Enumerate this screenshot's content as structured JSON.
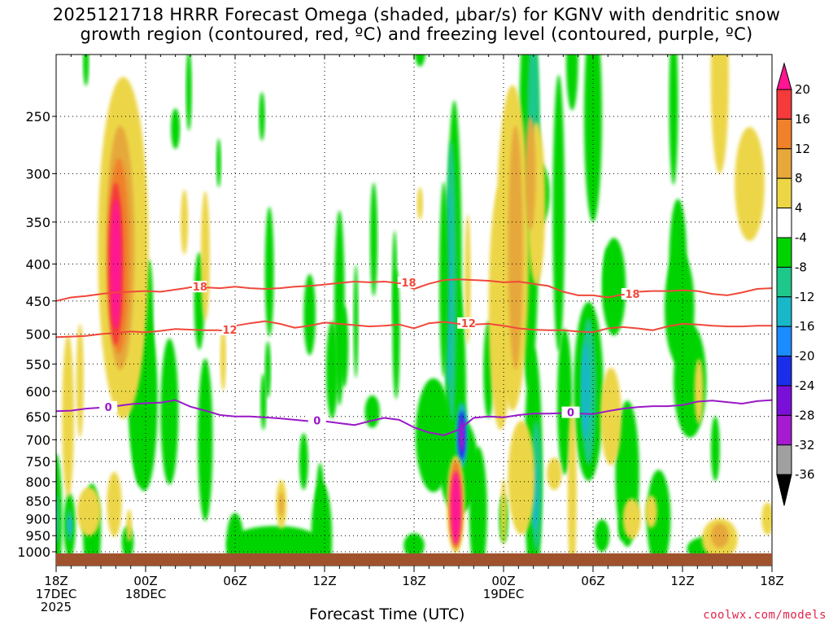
{
  "title": {
    "line1": "2025121718 HRRR Forecast Omega (shaded, μbar/s) for KGNV with dendritic snow",
    "line2": "growth region (contoured, red, ºC) and freezing level (contoured, purple, ºC)"
  },
  "x_axis_title": "Forecast Time (UTC)",
  "credit": "coolwx.com/models",
  "chart_data": {
    "type": "heatmap",
    "title": "2025121718 HRRR Forecast Omega (shaded, μbar/s) for KGNV with dendritic snow growth region (contoured, red, ºC) and freezing level (contoured, purple, ºC)",
    "xlabel": "Forecast Time (UTC)",
    "ylabel": "",
    "x_range_hours": [
      0,
      48
    ],
    "y_levels_hPa": [
      250,
      300,
      350,
      400,
      450,
      500,
      550,
      600,
      650,
      700,
      750,
      800,
      850,
      900,
      950,
      1000
    ],
    "y_range_hPa": [
      1000,
      200
    ],
    "y_scale": "log-pressure",
    "grid": true,
    "x_ticks": [
      {
        "hour": 0,
        "lines": [
          "18Z",
          "17DEC",
          "2025"
        ]
      },
      {
        "hour": 6,
        "lines": [
          "00Z",
          "18DEC"
        ]
      },
      {
        "hour": 12,
        "lines": [
          "06Z"
        ]
      },
      {
        "hour": 18,
        "lines": [
          "12Z"
        ]
      },
      {
        "hour": 24,
        "lines": [
          "18Z"
        ]
      },
      {
        "hour": 30,
        "lines": [
          "00Z",
          "19DEC"
        ]
      },
      {
        "hour": 36,
        "lines": [
          "06Z"
        ]
      },
      {
        "hour": 42,
        "lines": [
          "12Z"
        ]
      },
      {
        "hour": 48,
        "lines": [
          "18Z"
        ]
      }
    ],
    "colorbar": {
      "labels": [
        "20",
        "16",
        "12",
        "8",
        "4",
        "-4",
        "-8",
        "-12",
        "-16",
        "-20",
        "-24",
        "-28",
        "-32",
        "-36"
      ],
      "bins": [
        {
          "from": 20,
          "to": 24,
          "color": "#ff1493"
        },
        {
          "from": 16,
          "to": 20,
          "color": "#f43a3a"
        },
        {
          "from": 12,
          "to": 16,
          "color": "#f0812a"
        },
        {
          "from": 8,
          "to": 12,
          "color": "#e6a83a"
        },
        {
          "from": 4,
          "to": 8,
          "color": "#ecd646"
        },
        {
          "from": -4,
          "to": 4,
          "color": "#ffffff"
        },
        {
          "from": -8,
          "to": -4,
          "color": "#00d400"
        },
        {
          "from": -12,
          "to": -8,
          "color": "#1ec88a"
        },
        {
          "from": -16,
          "to": -12,
          "color": "#19b8c8"
        },
        {
          "from": -20,
          "to": -16,
          "color": "#1a8cff"
        },
        {
          "from": -24,
          "to": -20,
          "color": "#1a2eea"
        },
        {
          "from": -28,
          "to": -24,
          "color": "#7a10d8"
        },
        {
          "from": -32,
          "to": -28,
          "color": "#a61ad0"
        },
        {
          "from": -36,
          "to": -32,
          "color": "#a0a0a0"
        },
        {
          "from": -40,
          "to": -36,
          "color": "#000000"
        }
      ]
    },
    "contours": [
      {
        "name": "-18",
        "color": "#f0483a",
        "points": [
          [
            0,
            450
          ],
          [
            1,
            445
          ],
          [
            2,
            443
          ],
          [
            3,
            440
          ],
          [
            4,
            438
          ],
          [
            5,
            437
          ],
          [
            6,
            436
          ],
          [
            7,
            437
          ],
          [
            8,
            434
          ],
          [
            9,
            431
          ],
          [
            10,
            431
          ],
          [
            11,
            432
          ],
          [
            12,
            430
          ],
          [
            13,
            432
          ],
          [
            14,
            433
          ],
          [
            15,
            432
          ],
          [
            16,
            430
          ],
          [
            17,
            429
          ],
          [
            18,
            427
          ],
          [
            19,
            425
          ],
          [
            20,
            423
          ],
          [
            21,
            424
          ],
          [
            22,
            423
          ],
          [
            23,
            425
          ],
          [
            24,
            433
          ],
          [
            25,
            426
          ],
          [
            26,
            421
          ],
          [
            27,
            420
          ],
          [
            28,
            421
          ],
          [
            29,
            422
          ],
          [
            30,
            424
          ],
          [
            31,
            423
          ],
          [
            32,
            426
          ],
          [
            33,
            429
          ],
          [
            34,
            437
          ],
          [
            35,
            442
          ],
          [
            36,
            442
          ],
          [
            37,
            445
          ],
          [
            38,
            441
          ],
          [
            39,
            437
          ],
          [
            40,
            436
          ],
          [
            41,
            436
          ],
          [
            42,
            435
          ],
          [
            43,
            436
          ],
          [
            44,
            440
          ],
          [
            45,
            442
          ],
          [
            46,
            438
          ],
          [
            47,
            433
          ],
          [
            48,
            432
          ]
        ],
        "labels": [
          [
            9.5,
            "-18"
          ],
          [
            23.5,
            "-18"
          ],
          [
            38.5,
            "-18"
          ]
        ]
      },
      {
        "name": "-12",
        "color": "#f0483a",
        "points": [
          [
            0,
            505
          ],
          [
            1,
            504
          ],
          [
            2,
            503
          ],
          [
            3,
            500
          ],
          [
            4,
            498
          ],
          [
            5,
            496
          ],
          [
            6,
            497
          ],
          [
            7,
            495
          ],
          [
            8,
            492
          ],
          [
            9,
            493
          ],
          [
            10,
            494
          ],
          [
            11,
            494
          ],
          [
            12,
            487
          ],
          [
            13,
            483
          ],
          [
            14,
            480
          ],
          [
            15,
            484
          ],
          [
            16,
            490
          ],
          [
            17,
            487
          ],
          [
            18,
            482
          ],
          [
            19,
            484
          ],
          [
            20,
            486
          ],
          [
            21,
            488
          ],
          [
            22,
            487
          ],
          [
            23,
            485
          ],
          [
            24,
            491
          ],
          [
            25,
            483
          ],
          [
            26,
            481
          ],
          [
            27,
            484
          ],
          [
            28,
            485
          ],
          [
            29,
            484
          ],
          [
            30,
            487
          ],
          [
            31,
            491
          ],
          [
            32,
            493
          ],
          [
            33,
            494
          ],
          [
            34,
            494
          ],
          [
            35,
            496
          ],
          [
            36,
            497
          ],
          [
            37,
            491
          ],
          [
            38,
            489
          ],
          [
            39,
            491
          ],
          [
            40,
            494
          ],
          [
            41,
            488
          ],
          [
            42,
            484
          ],
          [
            43,
            485
          ],
          [
            44,
            487
          ],
          [
            45,
            488
          ],
          [
            46,
            488
          ],
          [
            47,
            487
          ],
          [
            48,
            487
          ]
        ],
        "labels": [
          [
            11.5,
            "-12"
          ],
          [
            27.5,
            "-12"
          ]
        ]
      },
      {
        "name": "0",
        "color": "#9a18c8",
        "points": [
          [
            0,
            639
          ],
          [
            1,
            638
          ],
          [
            2,
            634
          ],
          [
            3,
            632
          ],
          [
            4,
            629
          ],
          [
            5,
            625
          ],
          [
            6,
            623
          ],
          [
            7,
            622
          ],
          [
            8,
            617
          ],
          [
            9,
            630
          ],
          [
            10,
            638
          ],
          [
            11,
            647
          ],
          [
            12,
            650
          ],
          [
            13,
            650
          ],
          [
            14,
            652
          ],
          [
            15,
            654
          ],
          [
            16,
            657
          ],
          [
            17,
            660
          ],
          [
            18,
            660
          ],
          [
            19,
            664
          ],
          [
            20,
            668
          ],
          [
            21,
            660
          ],
          [
            22,
            653
          ],
          [
            23,
            657
          ],
          [
            24,
            673
          ],
          [
            25,
            684
          ],
          [
            26,
            690
          ],
          [
            27,
            678
          ],
          [
            28,
            653
          ],
          [
            29,
            650
          ],
          [
            30,
            652
          ],
          [
            31,
            647
          ],
          [
            32,
            644
          ],
          [
            33,
            644
          ],
          [
            34,
            643
          ],
          [
            35,
            644
          ],
          [
            36,
            645
          ],
          [
            37,
            639
          ],
          [
            38,
            634
          ],
          [
            39,
            631
          ],
          [
            40,
            629
          ],
          [
            41,
            629
          ],
          [
            42,
            627
          ],
          [
            43,
            620
          ],
          [
            44,
            618
          ],
          [
            45,
            621
          ],
          [
            46,
            624
          ],
          [
            47,
            619
          ],
          [
            48,
            617
          ]
        ],
        "labels": [
          [
            3.5,
            "0"
          ],
          [
            17.5,
            "0"
          ],
          [
            34.5,
            "0"
          ]
        ]
      }
    ],
    "omega_regions": [
      {
        "label": "upward motion 4-8",
        "center_hour": 4.5,
        "center_hPa": 370,
        "value": 6
      },
      {
        "label": "upward motion max (>20)",
        "center_hour": 4,
        "center_hPa": 390,
        "value": 22
      },
      {
        "label": "upward motion 8-12",
        "center_hour": 31,
        "center_hPa": 410,
        "value": 9
      },
      {
        "label": "upward motion 4-8",
        "center_hour": 46,
        "center_hPa": 290,
        "value": 6
      },
      {
        "label": "upward motion max (>20) low-level",
        "center_hour": 27,
        "center_hPa": 870,
        "value": 22
      },
      {
        "label": "subsidence max (< -28)",
        "center_hour": 27,
        "center_hPa": 690,
        "value": -30
      },
      {
        "label": "subsidence column",
        "center_hour": 26.5,
        "center_hPa": 400,
        "value": -12
      },
      {
        "label": "subsidence -8 to -4",
        "center_hour": 34,
        "center_hPa": 250,
        "value": -6
      },
      {
        "label": "subsidence -12 to -8",
        "center_hour": 35.5,
        "center_hPa": 620,
        "value": -10
      }
    ]
  }
}
